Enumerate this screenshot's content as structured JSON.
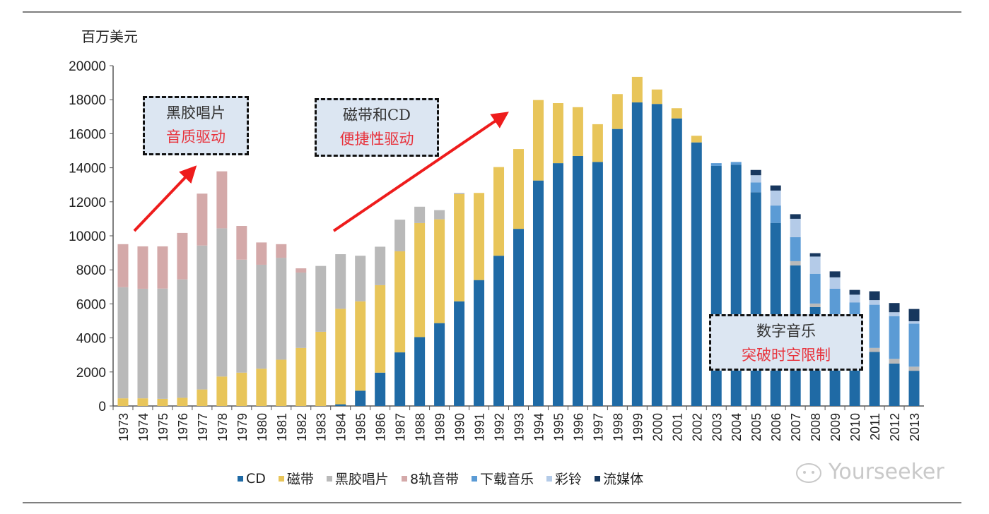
{
  "chart_data": {
    "type": "bar",
    "stacked": true,
    "ylabel": "百万美元",
    "ylim": [
      0,
      20000
    ],
    "yticks": [
      0,
      2000,
      4000,
      6000,
      8000,
      10000,
      12000,
      14000,
      16000,
      18000,
      20000
    ],
    "grid": false,
    "legend_position": "bottom",
    "categories": [
      "1973",
      "1974",
      "1975",
      "1976",
      "1977",
      "1978",
      "1979",
      "1980",
      "1981",
      "1982",
      "1983",
      "1984",
      "1985",
      "1986",
      "1987",
      "1988",
      "1989",
      "1990",
      "1991",
      "1992",
      "1993",
      "1994",
      "1995",
      "1996",
      "1997",
      "1998",
      "1999",
      "2000",
      "2001",
      "2002",
      "2003",
      "2004",
      "2005",
      "2006",
      "2007",
      "2008",
      "2009",
      "2010",
      "2011",
      "2012",
      "2013"
    ],
    "series": [
      {
        "name": "CD",
        "color": "#1f6aa5",
        "values": [
          0,
          0,
          0,
          0,
          0,
          0,
          0,
          0,
          0,
          0,
          0,
          100,
          900,
          1960,
          3150,
          4050,
          4870,
          6150,
          7400,
          8830,
          10410,
          13250,
          14270,
          14690,
          14340,
          16280,
          17840,
          17750,
          16900,
          15490,
          14110,
          14180,
          12560,
          10760,
          8260,
          5810,
          4300,
          3400,
          3180,
          2490,
          2070
        ]
      },
      {
        "name": "磁带",
        "color": "#e8c55a",
        "values": [
          450,
          450,
          420,
          480,
          970,
          1730,
          1960,
          2190,
          2720,
          3410,
          4360,
          5610,
          5250,
          5140,
          5940,
          6700,
          6100,
          6300,
          5120,
          5210,
          4690,
          4730,
          3530,
          2870,
          2220,
          2050,
          1500,
          850,
          600,
          390,
          0,
          0,
          0,
          0,
          0,
          0,
          0,
          0,
          0,
          0,
          0
        ]
      },
      {
        "name": "黑胶唱片",
        "color": "#b9b9b9",
        "values": [
          6530,
          6440,
          6480,
          6960,
          8460,
          8710,
          6640,
          6110,
          5990,
          4430,
          3870,
          3210,
          2680,
          2260,
          1860,
          960,
          540,
          70,
          0,
          0,
          0,
          0,
          0,
          0,
          0,
          0,
          0,
          0,
          0,
          0,
          0,
          0,
          0,
          0,
          250,
          210,
          100,
          90,
          230,
          280,
          240
        ]
      },
      {
        "name": "8轨音带",
        "color": "#d4a9a9",
        "values": [
          2530,
          2490,
          2480,
          2730,
          3050,
          3350,
          1980,
          1310,
          800,
          250,
          0,
          0,
          0,
          0,
          0,
          0,
          0,
          0,
          0,
          0,
          0,
          0,
          0,
          0,
          0,
          0,
          0,
          0,
          0,
          0,
          0,
          0,
          0,
          0,
          0,
          0,
          0,
          0,
          0,
          0,
          0
        ]
      },
      {
        "name": "下载音乐",
        "color": "#5b9bd5",
        "values": [
          0,
          0,
          0,
          0,
          0,
          0,
          0,
          0,
          0,
          0,
          0,
          0,
          0,
          0,
          0,
          0,
          0,
          0,
          0,
          0,
          0,
          0,
          0,
          0,
          0,
          0,
          0,
          0,
          0,
          0,
          160,
          160,
          580,
          1020,
          1410,
          1750,
          2490,
          2600,
          2540,
          2510,
          2530
        ]
      },
      {
        "name": "彩铃",
        "color": "#b4cbe8",
        "values": [
          0,
          0,
          0,
          0,
          0,
          0,
          0,
          0,
          0,
          0,
          0,
          0,
          0,
          0,
          0,
          0,
          0,
          0,
          0,
          0,
          0,
          0,
          0,
          0,
          0,
          0,
          0,
          0,
          0,
          0,
          0,
          0,
          420,
          880,
          1080,
          1010,
          670,
          450,
          270,
          230,
          140
        ]
      },
      {
        "name": "流媒体",
        "color": "#17375e",
        "values": [
          0,
          0,
          0,
          0,
          0,
          0,
          0,
          0,
          0,
          0,
          0,
          0,
          0,
          0,
          0,
          0,
          0,
          0,
          0,
          0,
          0,
          0,
          0,
          0,
          0,
          0,
          0,
          0,
          0,
          0,
          0,
          0,
          310,
          300,
          270,
          200,
          350,
          280,
          520,
          540,
          720
        ]
      }
    ],
    "annotations": [
      {
        "line1": "黑胶唱片",
        "line2": "音质驱动"
      },
      {
        "line1": "磁带和CD",
        "line2": "便捷性驱动"
      },
      {
        "line1": "数字音乐",
        "line2": "突破时空限制"
      }
    ],
    "annotation_colors": {
      "text": "#333333",
      "highlight": "#e8323c",
      "box": "#dce6f2",
      "arrow": "#ee1c1c"
    }
  },
  "watermark": "Yourseeker"
}
